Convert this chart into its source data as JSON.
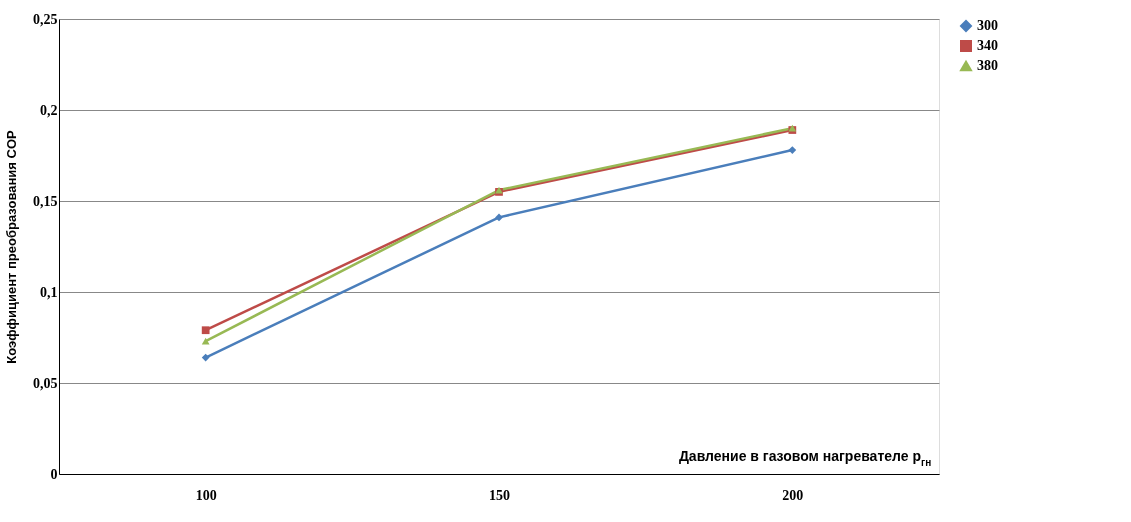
{
  "chart_data": {
    "type": "line",
    "xlabel": "Давление в газовом нагревателе p$_{гн}$",
    "ylabel": "Коэффициент преобразования COP",
    "categories": [
      "100",
      "150",
      "200"
    ],
    "series": [
      {
        "name": "300",
        "color": "#4a7ebb",
        "marker": "diamond",
        "values": [
          0.064,
          0.141,
          0.178
        ]
      },
      {
        "name": "340",
        "color": "#be4b48",
        "marker": "square",
        "values": [
          0.079,
          0.155,
          0.189
        ]
      },
      {
        "name": "380",
        "color": "#98b954",
        "marker": "triangle",
        "values": [
          0.073,
          0.156,
          0.19
        ]
      }
    ],
    "ylim": [
      0,
      0.25
    ],
    "yticks": [
      {
        "value": 0,
        "label": "0"
      },
      {
        "value": 0.05,
        "label": "0,05"
      },
      {
        "value": 0.1,
        "label": "0,1"
      },
      {
        "value": 0.15,
        "label": "0,15"
      },
      {
        "value": 0.2,
        "label": "0,2"
      },
      {
        "value": 0.25,
        "label": "0,25"
      }
    ],
    "grid": "y",
    "legend": "right",
    "line_style": "solid"
  }
}
